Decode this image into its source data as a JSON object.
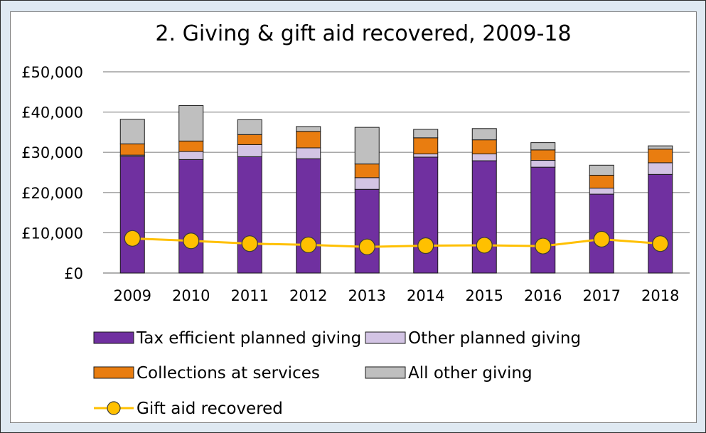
{
  "chart_data": {
    "type": "bar",
    "title": "2. Giving & gift aid recovered, 2009-18",
    "categories": [
      "2009",
      "2010",
      "2011",
      "2012",
      "2013",
      "2014",
      "2015",
      "2016",
      "2017",
      "2018"
    ],
    "y_ticks": [
      "£0",
      "£10,000",
      "£20,000",
      "£30,000",
      "£40,000",
      "£50,000"
    ],
    "ylim": [
      0,
      50000
    ],
    "grid": true,
    "legend_position": "bottom",
    "stacked": true,
    "series": [
      {
        "name": "Tax efficient planned giving",
        "type": "bar",
        "color": "#7030a0",
        "values": [
          29000,
          28200,
          28900,
          28400,
          20800,
          28800,
          27900,
          26300,
          19600,
          24500
        ]
      },
      {
        "name": "Other planned giving",
        "type": "bar",
        "color": "#d3c4e4",
        "values": [
          300,
          2000,
          3000,
          2700,
          2900,
          800,
          1700,
          1700,
          1500,
          2900
        ]
      },
      {
        "name": "Collections at services",
        "type": "bar",
        "color": "#e97d10",
        "values": [
          2800,
          2600,
          2500,
          4100,
          3400,
          4000,
          3500,
          2600,
          3200,
          3400
        ]
      },
      {
        "name": "All other giving",
        "type": "bar",
        "color": "#bfbfbf",
        "values": [
          6100,
          8800,
          3700,
          1200,
          9100,
          2100,
          2800,
          1800,
          2500,
          800
        ]
      },
      {
        "name": "Gift aid recovered",
        "type": "line",
        "color": "#ffc000",
        "values": [
          8600,
          8000,
          7300,
          7000,
          6500,
          6800,
          6900,
          6700,
          8400,
          7300
        ]
      }
    ]
  }
}
